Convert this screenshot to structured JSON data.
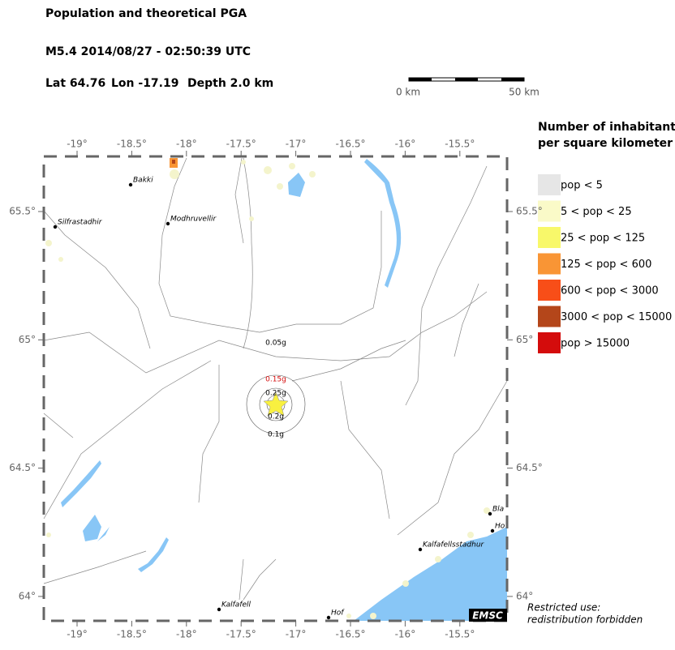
{
  "header": {
    "title": "Population and theoretical PGA",
    "event": "M5.4  2014/08/27 - 02:50:39 UTC",
    "lat": "Lat 64.76",
    "lon": "Lon -17.19",
    "depth": "Depth  2.0 km"
  },
  "scale": {
    "start": "0 km",
    "end": "50 km"
  },
  "legend": {
    "title": [
      "Number of inhabitants",
      "per square kilometer"
    ],
    "items": [
      {
        "label": "pop < 5",
        "color": "#e6e6e6"
      },
      {
        "label": "5 < pop < 25",
        "color": "#fafac8"
      },
      {
        "label": "25 < pop < 125",
        "color": "#f8f86a"
      },
      {
        "label": "125 < pop < 600",
        "color": "#f99535"
      },
      {
        "label": "600 < pop < 3000",
        "color": "#f84e18"
      },
      {
        "label": "3000 < pop < 15000",
        "color": "#b4461a"
      },
      {
        "label": "pop > 15000",
        "color": "#d40c0c"
      }
    ]
  },
  "map": {
    "lon_labels": [
      "-19°",
      "-18.5°",
      "-18°",
      "-17.5°",
      "-17°",
      "-16.5°",
      "-16°",
      "-15.5°"
    ],
    "lat_labels": [
      "65.5°",
      "65°",
      "64.5°",
      "64°"
    ],
    "places": [
      "Bakki",
      "Silfrastadhir",
      "Modhruvellir",
      "Kalfafellsstadhur",
      "Kalfafell",
      "Hof",
      "Bla",
      "Ho"
    ],
    "pga_labels": [
      "0.05g",
      "0.15g",
      "0.25g",
      "0.2g",
      "0.1g"
    ],
    "badge": "EMSC"
  },
  "notice": [
    "Restricted use:",
    "redistribution forbidden"
  ]
}
